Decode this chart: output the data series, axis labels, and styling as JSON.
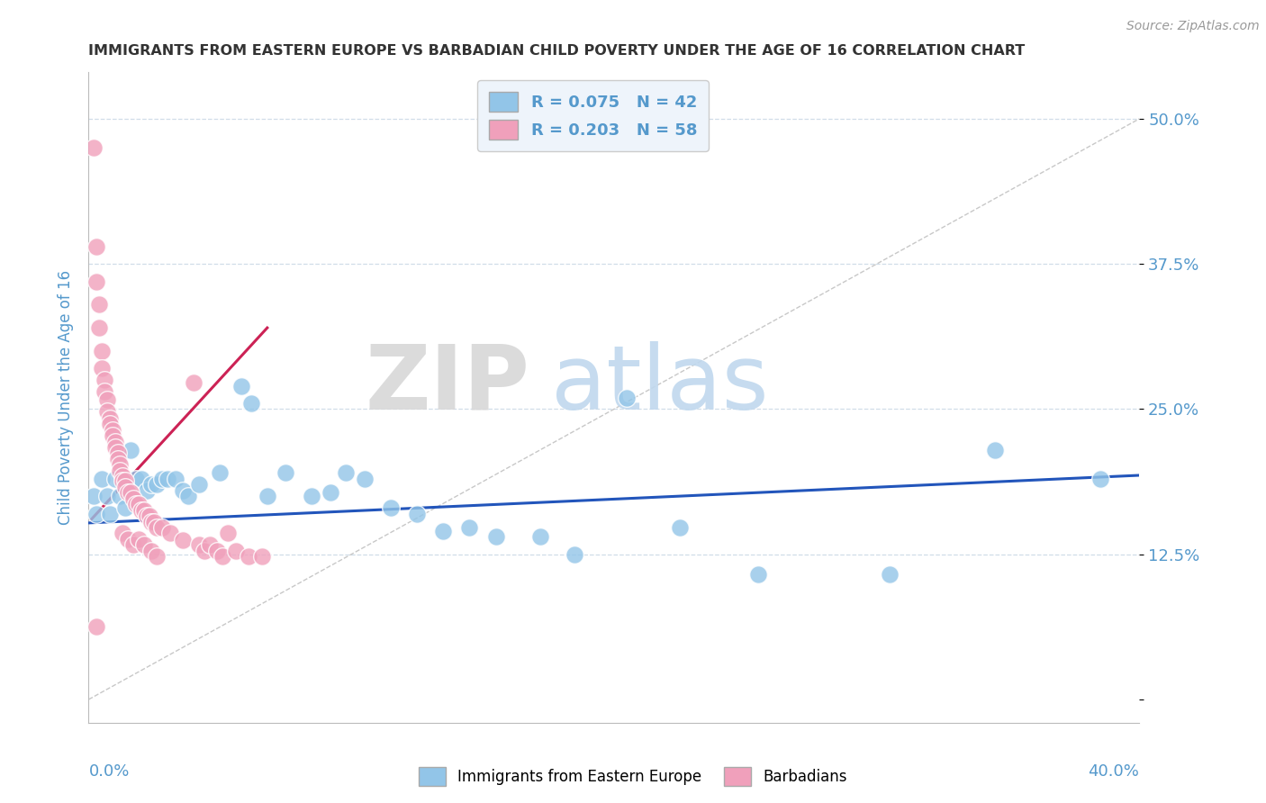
{
  "title": "IMMIGRANTS FROM EASTERN EUROPE VS BARBADIAN CHILD POVERTY UNDER THE AGE OF 16 CORRELATION CHART",
  "source": "Source: ZipAtlas.com",
  "ylabel": "Child Poverty Under the Age of 16",
  "yticks": [
    0.0,
    0.125,
    0.25,
    0.375,
    0.5
  ],
  "ytick_labels": [
    "",
    "12.5%",
    "25.0%",
    "37.5%",
    "50.0%"
  ],
  "xlim": [
    0.0,
    0.4
  ],
  "ylim": [
    -0.02,
    0.54
  ],
  "legend_label_blue": "R = 0.075   N = 42",
  "legend_label_pink": "R = 0.203   N = 58",
  "watermark_zip": "ZIP",
  "watermark_atlas": "atlas",
  "blue_scatter": [
    [
      0.002,
      0.175
    ],
    [
      0.003,
      0.16
    ],
    [
      0.005,
      0.19
    ],
    [
      0.007,
      0.175
    ],
    [
      0.008,
      0.16
    ],
    [
      0.01,
      0.19
    ],
    [
      0.012,
      0.175
    ],
    [
      0.014,
      0.165
    ],
    [
      0.016,
      0.215
    ],
    [
      0.018,
      0.19
    ],
    [
      0.02,
      0.19
    ],
    [
      0.022,
      0.18
    ],
    [
      0.024,
      0.185
    ],
    [
      0.026,
      0.185
    ],
    [
      0.028,
      0.19
    ],
    [
      0.03,
      0.19
    ],
    [
      0.033,
      0.19
    ],
    [
      0.036,
      0.18
    ],
    [
      0.038,
      0.175
    ],
    [
      0.042,
      0.185
    ],
    [
      0.05,
      0.195
    ],
    [
      0.058,
      0.27
    ],
    [
      0.062,
      0.255
    ],
    [
      0.068,
      0.175
    ],
    [
      0.075,
      0.195
    ],
    [
      0.085,
      0.175
    ],
    [
      0.092,
      0.178
    ],
    [
      0.098,
      0.195
    ],
    [
      0.105,
      0.19
    ],
    [
      0.115,
      0.165
    ],
    [
      0.125,
      0.16
    ],
    [
      0.135,
      0.145
    ],
    [
      0.145,
      0.148
    ],
    [
      0.155,
      0.14
    ],
    [
      0.172,
      0.14
    ],
    [
      0.185,
      0.125
    ],
    [
      0.205,
      0.26
    ],
    [
      0.225,
      0.148
    ],
    [
      0.255,
      0.108
    ],
    [
      0.305,
      0.108
    ],
    [
      0.345,
      0.215
    ],
    [
      0.385,
      0.19
    ]
  ],
  "pink_scatter": [
    [
      0.002,
      0.475
    ],
    [
      0.003,
      0.39
    ],
    [
      0.003,
      0.36
    ],
    [
      0.004,
      0.34
    ],
    [
      0.004,
      0.32
    ],
    [
      0.005,
      0.3
    ],
    [
      0.005,
      0.285
    ],
    [
      0.006,
      0.275
    ],
    [
      0.006,
      0.265
    ],
    [
      0.007,
      0.258
    ],
    [
      0.007,
      0.248
    ],
    [
      0.008,
      0.242
    ],
    [
      0.008,
      0.237
    ],
    [
      0.009,
      0.232
    ],
    [
      0.009,
      0.227
    ],
    [
      0.01,
      0.222
    ],
    [
      0.01,
      0.217
    ],
    [
      0.011,
      0.212
    ],
    [
      0.011,
      0.207
    ],
    [
      0.012,
      0.202
    ],
    [
      0.012,
      0.197
    ],
    [
      0.013,
      0.192
    ],
    [
      0.013,
      0.188
    ],
    [
      0.014,
      0.188
    ],
    [
      0.014,
      0.183
    ],
    [
      0.015,
      0.178
    ],
    [
      0.016,
      0.178
    ],
    [
      0.017,
      0.173
    ],
    [
      0.018,
      0.168
    ],
    [
      0.019,
      0.168
    ],
    [
      0.02,
      0.163
    ],
    [
      0.021,
      0.163
    ],
    [
      0.022,
      0.158
    ],
    [
      0.023,
      0.158
    ],
    [
      0.024,
      0.153
    ],
    [
      0.025,
      0.153
    ],
    [
      0.026,
      0.148
    ],
    [
      0.028,
      0.148
    ],
    [
      0.031,
      0.143
    ],
    [
      0.036,
      0.137
    ],
    [
      0.04,
      0.273
    ],
    [
      0.042,
      0.133
    ],
    [
      0.044,
      0.128
    ],
    [
      0.046,
      0.133
    ],
    [
      0.049,
      0.128
    ],
    [
      0.051,
      0.123
    ],
    [
      0.053,
      0.143
    ],
    [
      0.056,
      0.128
    ],
    [
      0.061,
      0.123
    ],
    [
      0.066,
      0.123
    ],
    [
      0.003,
      0.063
    ],
    [
      0.013,
      0.143
    ],
    [
      0.015,
      0.138
    ],
    [
      0.017,
      0.133
    ],
    [
      0.019,
      0.138
    ],
    [
      0.021,
      0.133
    ],
    [
      0.024,
      0.128
    ],
    [
      0.026,
      0.123
    ]
  ],
  "blue_line": {
    "x": [
      0.0,
      0.4
    ],
    "y": [
      0.152,
      0.193
    ]
  },
  "pink_line": {
    "x": [
      0.001,
      0.068
    ],
    "y": [
      0.155,
      0.32
    ]
  },
  "diag_line": {
    "x": [
      0.0,
      0.4
    ],
    "y": [
      0.0,
      0.5
    ]
  },
  "blue_color": "#92c5e8",
  "pink_color": "#f0a0bb",
  "blue_line_color": "#2255bb",
  "pink_line_color": "#cc2255",
  "diag_color": "#c8c8c8",
  "title_color": "#333333",
  "axis_label_color": "#5599cc",
  "grid_color": "#d0dde8",
  "background_color": "#ffffff",
  "legend_box_color": "#eef4fb",
  "bottom_legend_blue": "Immigrants from Eastern Europe",
  "bottom_legend_pink": "Barbadians"
}
